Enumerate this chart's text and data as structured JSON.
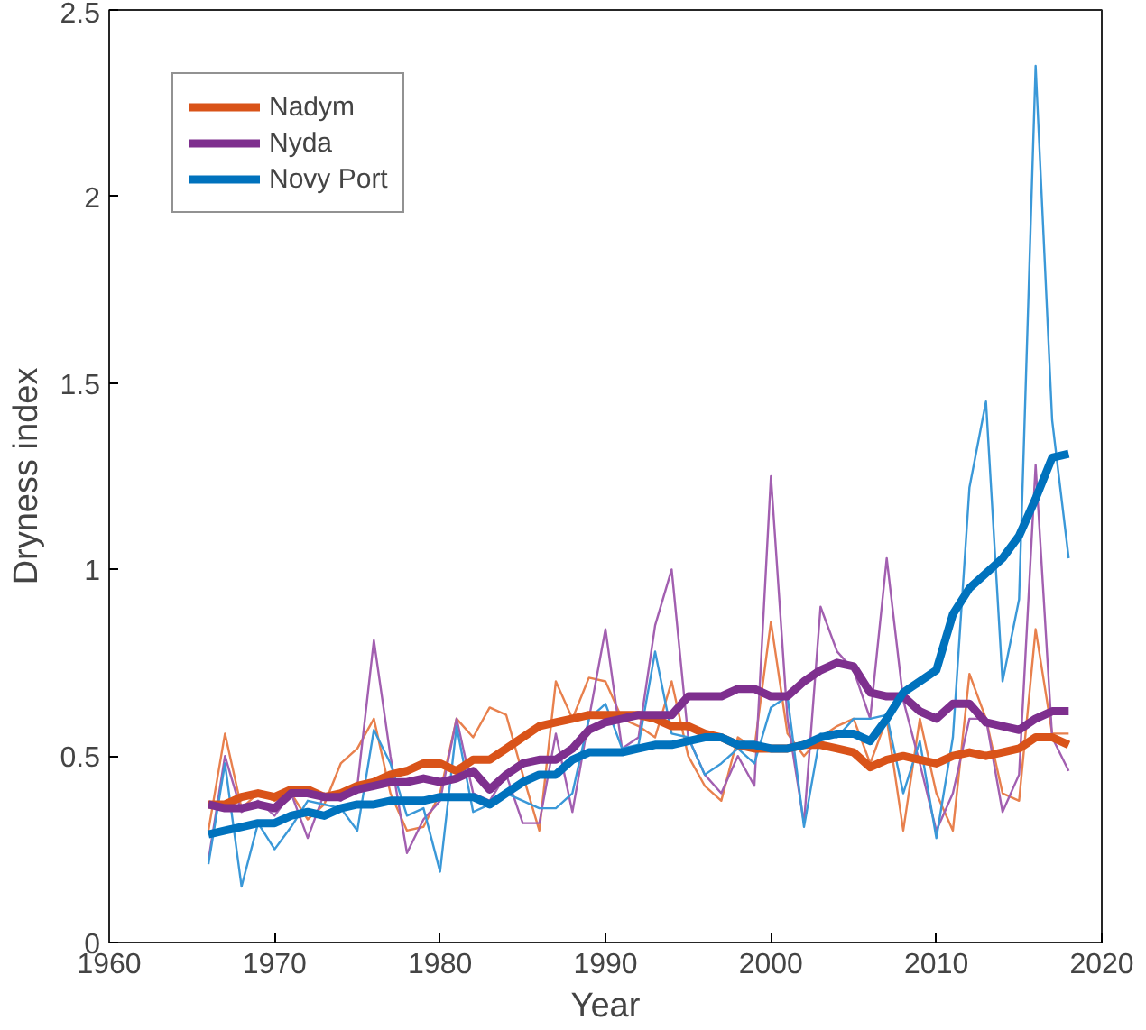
{
  "chart_data": {
    "type": "line",
    "xlabel": "Year",
    "ylabel": "Dryness index",
    "x": [
      1966,
      1967,
      1968,
      1969,
      1970,
      1971,
      1972,
      1973,
      1974,
      1975,
      1976,
      1977,
      1978,
      1979,
      1980,
      1981,
      1982,
      1983,
      1984,
      1985,
      1986,
      1987,
      1988,
      1989,
      1990,
      1991,
      1992,
      1993,
      1994,
      1995,
      1996,
      1997,
      1998,
      1999,
      2000,
      2001,
      2002,
      2003,
      2004,
      2005,
      2006,
      2007,
      2008,
      2009,
      2010,
      2011,
      2012,
      2013,
      2014,
      2015,
      2016,
      2017,
      2018
    ],
    "series": [
      {
        "color": "#e8804d",
        "values": [
          0.3,
          0.56,
          0.36,
          0.4,
          0.38,
          0.4,
          0.33,
          0.37,
          0.48,
          0.52,
          0.6,
          0.4,
          0.3,
          0.31,
          0.4,
          0.6,
          0.55,
          0.63,
          0.61,
          0.45,
          0.3,
          0.7,
          0.6,
          0.71,
          0.7,
          0.6,
          0.58,
          0.55,
          0.7,
          0.5,
          0.42,
          0.38,
          0.55,
          0.52,
          0.86,
          0.56,
          0.5,
          0.55,
          0.58,
          0.6,
          0.48,
          0.6,
          0.3,
          0.6,
          0.4,
          0.3,
          0.72,
          0.6,
          0.4,
          0.38,
          0.84,
          0.56,
          0.56
        ]
      },
      {
        "color": "#a25fb0",
        "values": [
          0.22,
          0.5,
          0.35,
          0.38,
          0.34,
          0.4,
          0.28,
          0.4,
          0.38,
          0.42,
          0.81,
          0.5,
          0.24,
          0.33,
          0.38,
          0.6,
          0.4,
          0.38,
          0.45,
          0.32,
          0.32,
          0.56,
          0.35,
          0.6,
          0.84,
          0.52,
          0.55,
          0.85,
          1.0,
          0.55,
          0.45,
          0.4,
          0.5,
          0.42,
          1.25,
          0.6,
          0.32,
          0.9,
          0.78,
          0.73,
          0.6,
          1.03,
          0.65,
          0.48,
          0.3,
          0.4,
          0.6,
          0.6,
          0.35,
          0.45,
          1.28,
          0.55,
          0.46
        ]
      },
      {
        "color": "#3a98d8",
        "values": [
          0.21,
          0.48,
          0.15,
          0.32,
          0.25,
          0.31,
          0.38,
          0.37,
          0.36,
          0.3,
          0.57,
          0.48,
          0.34,
          0.36,
          0.19,
          0.58,
          0.35,
          0.37,
          0.4,
          0.38,
          0.36,
          0.36,
          0.4,
          0.6,
          0.64,
          0.52,
          0.53,
          0.78,
          0.56,
          0.55,
          0.45,
          0.48,
          0.52,
          0.48,
          0.63,
          0.66,
          0.31,
          0.56,
          0.55,
          0.6,
          0.6,
          0.61,
          0.4,
          0.54,
          0.28,
          0.55,
          1.22,
          1.45,
          0.7,
          0.92,
          2.35,
          1.4,
          1.03
        ]
      },
      {
        "name": "Nadym",
        "color": "#d95319",
        "values": [
          0.37,
          0.37,
          0.39,
          0.4,
          0.39,
          0.41,
          0.41,
          0.39,
          0.4,
          0.42,
          0.43,
          0.45,
          0.46,
          0.48,
          0.48,
          0.46,
          0.49,
          0.49,
          0.52,
          0.55,
          0.58,
          0.59,
          0.6,
          0.61,
          0.61,
          0.61,
          0.61,
          0.6,
          0.58,
          0.58,
          0.56,
          0.55,
          0.53,
          0.52,
          0.52,
          0.52,
          0.53,
          0.53,
          0.52,
          0.51,
          0.47,
          0.49,
          0.5,
          0.49,
          0.48,
          0.5,
          0.51,
          0.5,
          0.51,
          0.52,
          0.55,
          0.55,
          0.53
        ]
      },
      {
        "name": "Nyda",
        "color": "#7e2f8e",
        "values": [
          0.37,
          0.36,
          0.36,
          0.37,
          0.36,
          0.4,
          0.4,
          0.39,
          0.39,
          0.41,
          0.42,
          0.43,
          0.43,
          0.44,
          0.43,
          0.44,
          0.46,
          0.41,
          0.45,
          0.48,
          0.49,
          0.49,
          0.52,
          0.57,
          0.59,
          0.6,
          0.61,
          0.61,
          0.61,
          0.66,
          0.66,
          0.66,
          0.68,
          0.68,
          0.66,
          0.66,
          0.7,
          0.73,
          0.75,
          0.74,
          0.67,
          0.66,
          0.66,
          0.62,
          0.6,
          0.64,
          0.64,
          0.59,
          0.58,
          0.57,
          0.6,
          0.62,
          0.62
        ]
      },
      {
        "name": "Novy Port",
        "color": "#0072bd",
        "values": [
          0.29,
          0.3,
          0.31,
          0.32,
          0.32,
          0.34,
          0.35,
          0.34,
          0.36,
          0.37,
          0.37,
          0.38,
          0.38,
          0.38,
          0.39,
          0.39,
          0.39,
          0.37,
          0.4,
          0.43,
          0.45,
          0.45,
          0.49,
          0.51,
          0.51,
          0.51,
          0.52,
          0.53,
          0.53,
          0.54,
          0.55,
          0.55,
          0.53,
          0.53,
          0.52,
          0.52,
          0.53,
          0.55,
          0.56,
          0.56,
          0.54,
          0.6,
          0.67,
          0.7,
          0.73,
          0.88,
          0.95,
          0.99,
          1.03,
          1.09,
          1.19,
          1.3,
          1.31
        ]
      }
    ],
    "xlim": [
      1960,
      2020
    ],
    "xticks": [
      1960,
      1970,
      1980,
      1990,
      2000,
      2010,
      2020
    ],
    "ylim": [
      0,
      2.5
    ],
    "yticks": [
      0,
      0.5,
      1,
      1.5,
      2,
      2.5
    ],
    "legend": "top left",
    "grid": false
  }
}
